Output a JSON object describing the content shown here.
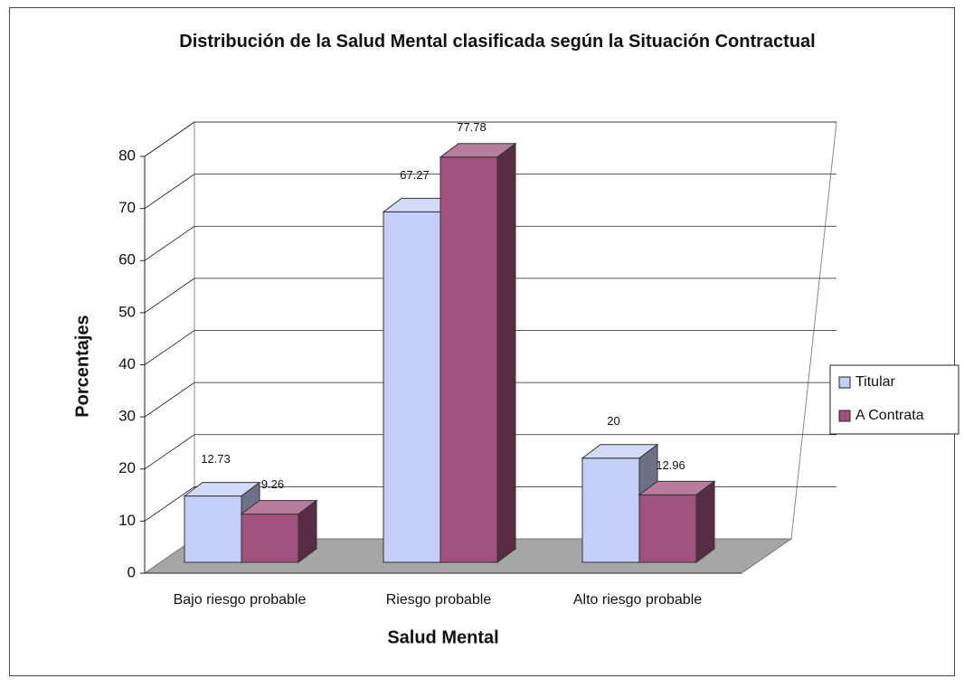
{
  "chart_data": {
    "type": "bar3d",
    "title": "Distribución de la Salud Mental clasificada según la Situación Contractual",
    "x_label": "Salud Mental",
    "y_label": "Porcentajes",
    "categories": [
      "Bajo riesgo probable",
      "Riesgo probable",
      "Alto riesgo probable"
    ],
    "series": [
      {
        "name": "Titular",
        "color": "#c4cef6",
        "values": [
          12.73,
          67.27,
          20
        ]
      },
      {
        "name": "A Contrata",
        "color": "#a0527c",
        "values": [
          9.26,
          77.78,
          12.96
        ]
      }
    ],
    "ylim": [
      0,
      80
    ],
    "yticks": [
      0,
      10,
      20,
      30,
      40,
      50,
      60,
      70,
      80
    ],
    "grid": true,
    "legend": "right"
  }
}
